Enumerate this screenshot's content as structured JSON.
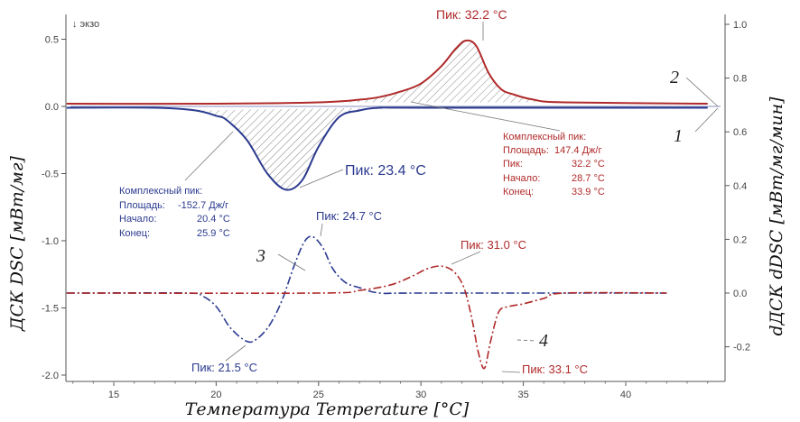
{
  "chart_data": {
    "type": "line",
    "xlabel": "Температура Temperature [°C]",
    "ylabel_left": "ДСК DSC [мВт/мг]",
    "ylabel_right": "dДСК dDSC [мВт/мг/мин]",
    "exo_label": "↓ экзо",
    "xlim": [
      12.7,
      44.3
    ],
    "ylim_left": [
      -2.05,
      0.65
    ],
    "ylim_right": [
      -0.33,
      1.02
    ],
    "x_ticks": [
      15,
      20,
      25,
      30,
      35,
      40
    ],
    "y_left_ticks": [
      "0.5",
      "0.0",
      "-0.5",
      "-1.0",
      "-1.5",
      "-2.0"
    ],
    "y_right_ticks": [
      "1.0",
      "0.8",
      "0.6",
      "0.4",
      "0.2",
      "0.0",
      "-0.2"
    ],
    "grid": false,
    "colors": {
      "blue": "#2b3a8f",
      "red": "#b02a2a"
    },
    "series": [
      {
        "name": "1",
        "axis": "left",
        "color": "#2b3a8f",
        "style": "solid",
        "x": [
          12.7,
          17,
          19,
          20,
          20.5,
          21.5,
          22.5,
          23.4,
          24.2,
          25,
          26,
          27,
          28,
          30,
          44
        ],
        "y": [
          -0.01,
          -0.01,
          -0.03,
          -0.07,
          -0.1,
          -0.25,
          -0.5,
          -0.62,
          -0.55,
          -0.3,
          -0.08,
          -0.03,
          -0.01,
          -0.01,
          -0.01
        ]
      },
      {
        "name": "2",
        "axis": "left",
        "color": "#b02a2a",
        "style": "solid",
        "x": [
          12.7,
          20,
          25,
          27,
          28,
          29,
          30,
          31,
          31.7,
          32.2,
          32.7,
          33.3,
          33.9,
          34.5,
          35.5,
          37,
          44
        ],
        "y": [
          0.02,
          0.02,
          0.03,
          0.05,
          0.07,
          0.11,
          0.17,
          0.3,
          0.43,
          0.49,
          0.45,
          0.25,
          0.13,
          0.09,
          0.05,
          0.03,
          0.02
        ]
      },
      {
        "name": "3",
        "axis": "right",
        "color": "#2b3a8f",
        "style": "dashdot",
        "x": [
          12.7,
          18.5,
          19.3,
          20,
          20.7,
          21.5,
          22,
          22.6,
          23.2,
          23.8,
          24.3,
          24.7,
          25.2,
          25.7,
          26.3,
          27,
          28,
          30,
          42
        ],
        "y": [
          0,
          0,
          -0.01,
          -0.05,
          -0.13,
          -0.18,
          -0.17,
          -0.12,
          -0.03,
          0.1,
          0.19,
          0.21,
          0.17,
          0.09,
          0.04,
          0.02,
          0,
          0,
          0
        ]
      },
      {
        "name": "4",
        "axis": "right",
        "color": "#b02a2a",
        "style": "dashdot",
        "x": [
          12.7,
          25,
          27,
          28.5,
          29.5,
          30.3,
          31,
          31.6,
          32.1,
          32.5,
          32.8,
          33.1,
          33.4,
          33.8,
          34.3,
          35,
          36,
          37,
          42
        ],
        "y": [
          0,
          0,
          0.01,
          0.03,
          0.06,
          0.09,
          0.1,
          0.08,
          0.02,
          -0.1,
          -0.22,
          -0.28,
          -0.18,
          -0.07,
          -0.05,
          -0.04,
          -0.02,
          0,
          0
        ]
      }
    ],
    "annotations": {
      "peak_2": "Пик: 32.2 °C",
      "peak_1": "Пик: 23.4 °C",
      "peak_3_max": "Пик: 24.7 °C",
      "peak_3_min": "Пик: 21.5 °C",
      "peak_4_max": "Пик: 31.0 °C",
      "peak_4_min": "Пик: 33.1 °C",
      "box_blue": [
        "Комплексный пик:",
        "Площадь:",
        "-152.7 Дж/г",
        "Начало:",
        "20.4 °C",
        "Конец:",
        "25.9 °C"
      ],
      "box_red": [
        "Комплексный пик:",
        "Площадь:",
        "147.4 Дж/г",
        "Пик:",
        "32.2 °C",
        "Начало:",
        "28.7 °C",
        "Конец:",
        "33.9 °C"
      ],
      "curve_labels": [
        "1",
        "2",
        "3",
        "4"
      ]
    }
  }
}
